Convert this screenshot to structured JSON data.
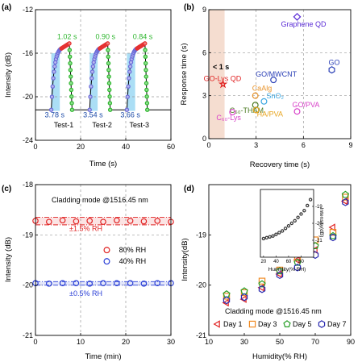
{
  "chart_data": [
    {
      "id": "a",
      "panel_label": "(a)",
      "type": "line",
      "xlabel": "Time (s)",
      "ylabel": "Intensity (dB)",
      "xlim": [
        0,
        60
      ],
      "ylim": [
        -24,
        -12
      ],
      "xticks": [
        0,
        20,
        40,
        60
      ],
      "yticks": [
        -12,
        -16,
        -20,
        -24
      ],
      "grid": true,
      "tests": [
        {
          "label": "Test-1",
          "start": 7,
          "rise": 3.78,
          "hold_end": 15,
          "fall": 1.02,
          "rise_label": "3.78 s",
          "fall_label": "1.02 s"
        },
        {
          "label": "Test-2",
          "start": 24,
          "rise": 3.54,
          "hold_end": 32,
          "fall": 0.9,
          "rise_label": "3.54 s",
          "fall_label": "0.90 s"
        },
        {
          "label": "Test-3",
          "start": 40.5,
          "rise": 3.66,
          "hold_end": 48.5,
          "fall": 0.84,
          "rise_label": "3.66 s",
          "fall_label": "0.84 s"
        }
      ],
      "low_level": -21.2,
      "high_level": -15.6,
      "colors": {
        "rise": "#6a6ad8",
        "fall": "#2fb62f",
        "high": "#e53030",
        "shade": "#8fd3f2",
        "line": "#000000"
      }
    },
    {
      "id": "b",
      "panel_label": "(b)",
      "type": "scatter",
      "xlabel": "Recovery time (s)",
      "ylabel": "Response time (s)",
      "xlim": [
        0,
        9
      ],
      "ylim": [
        0,
        9
      ],
      "xticks": [
        0,
        3,
        6,
        9
      ],
      "yticks": [
        0,
        3,
        6,
        9
      ],
      "grid": true,
      "shade_x": [
        0,
        1
      ],
      "shade_color": "#f5ddd0",
      "annotation": "< 1 s",
      "points": [
        {
          "label": "Graphene QD",
          "x": 5.6,
          "y": 8.5,
          "marker": "diamond",
          "color": "#5a2bd6"
        },
        {
          "label": "GO",
          "x": 7.8,
          "y": 4.8,
          "marker": "hexagon",
          "color": "#2a3fb6"
        },
        {
          "label": "GO/MWCNT",
          "x": 4.1,
          "y": 4.1,
          "marker": "circle",
          "color": "#2a3fb6"
        },
        {
          "label": "GO-Lys QD",
          "x": 0.9,
          "y": 3.8,
          "marker": "star",
          "color": "#e02020"
        },
        {
          "label": "CaAlg",
          "x": 2.95,
          "y": 3.0,
          "marker": "circle",
          "color": "#e8932a"
        },
        {
          "label": "SnO₂",
          "x": 3.5,
          "y": 2.6,
          "marker": "circle",
          "color": "#3aa6e0"
        },
        {
          "label": "C₆₀-THAM",
          "x": 2.95,
          "y": 2.35,
          "marker": "circle",
          "color": "#4a7a20"
        },
        {
          "label": "HA/PVA",
          "x": 3.0,
          "y": 2.0,
          "marker": "circle",
          "color": "#e8a520"
        },
        {
          "label": "C₆₀-Lys",
          "x": 1.5,
          "y": 1.85,
          "marker": "circle",
          "color": "#d840c8"
        },
        {
          "label": "GO/PVA",
          "x": 5.6,
          "y": 1.9,
          "marker": "circle",
          "color": "#d840c8"
        }
      ]
    },
    {
      "id": "c",
      "panel_label": "(c)",
      "type": "scatter",
      "title": "Cladding mode @1516.45 nm",
      "xlabel": "Time (min)",
      "ylabel": "Intensity (dB)",
      "xlim": [
        0,
        30
      ],
      "ylim": [
        -21,
        -18
      ],
      "xticks": [
        0,
        10,
        20,
        30
      ],
      "yticks": [
        -18,
        -19,
        -20,
        -21
      ],
      "grid": true,
      "x": [
        0,
        3,
        6,
        9,
        12,
        15,
        18,
        21,
        24,
        27,
        30
      ],
      "series": [
        {
          "name": "80% RH",
          "values": [
            -18.72,
            -18.74,
            -18.71,
            -18.73,
            -18.72,
            -18.74,
            -18.71,
            -18.72,
            -18.73,
            -18.72,
            -18.74
          ],
          "color": "#e02020",
          "band": "±1.5% RH",
          "band_range": [
            -18.8,
            -18.65
          ]
        },
        {
          "name": "40% RH",
          "values": [
            -19.96,
            -19.97,
            -19.96,
            -19.96,
            -19.97,
            -19.96,
            -19.96,
            -19.96,
            -19.97,
            -19.96,
            -19.96
          ],
          "color": "#2a3fd6",
          "band": "±0.5% RH",
          "band_range": [
            -20.0,
            -19.93
          ]
        }
      ]
    },
    {
      "id": "d",
      "panel_label": "(d)",
      "type": "scatter",
      "title": "Cladding mode @1516.45 nm",
      "xlabel": "Humidity(% RH)",
      "ylabel": "Intensity(dB)",
      "xlim": [
        10,
        90
      ],
      "ylim": [
        -21,
        -18
      ],
      "xticks": [
        10,
        30,
        50,
        70,
        90
      ],
      "yticks": [
        -19,
        -20,
        -21
      ],
      "x": [
        20,
        30,
        40,
        50,
        60,
        70,
        80,
        87
      ],
      "series": [
        {
          "name": "Day 1",
          "marker": "triangle-left",
          "color": "#e02020",
          "values": [
            -20.35,
            -20.28,
            -20.05,
            -19.78,
            -19.5,
            -19.3,
            -18.85,
            -18.33
          ]
        },
        {
          "name": "Day 3",
          "marker": "square",
          "color": "#f08a24",
          "values": [
            -20.22,
            -20.15,
            -19.92,
            -19.7,
            -19.45,
            -19.1,
            -18.95,
            -18.25
          ]
        },
        {
          "name": "Day 5",
          "marker": "pentagon",
          "color": "#2aa02a",
          "values": [
            -20.18,
            -20.12,
            -19.98,
            -19.72,
            -19.55,
            -19.22,
            -19.02,
            -18.2
          ]
        },
        {
          "name": "Day 7",
          "marker": "hexagon",
          "color": "#2a2ab0",
          "values": [
            -20.3,
            -20.24,
            -20.08,
            -19.8,
            -19.65,
            -19.4,
            -19.05,
            -18.35
          ]
        }
      ],
      "inset": {
        "xlabel": "Humidity(% RH)",
        "ylabel": "Intensity(dB)",
        "xlim": [
          15,
          100
        ],
        "ylim": [
          -22,
          -18
        ],
        "xticks": [
          20,
          40,
          60,
          80
        ],
        "yticks": [
          -19,
          -20,
          -21
        ],
        "x": [
          20,
          25,
          30,
          35,
          40,
          45,
          50,
          55,
          60,
          65,
          70,
          75,
          80,
          85,
          90,
          95
        ],
        "values": [
          -20.9,
          -20.85,
          -20.8,
          -20.75,
          -20.65,
          -20.55,
          -20.45,
          -20.3,
          -20.15,
          -20.0,
          -19.85,
          -19.65,
          -19.45,
          -19.25,
          -18.95,
          -18.6
        ]
      }
    }
  ]
}
